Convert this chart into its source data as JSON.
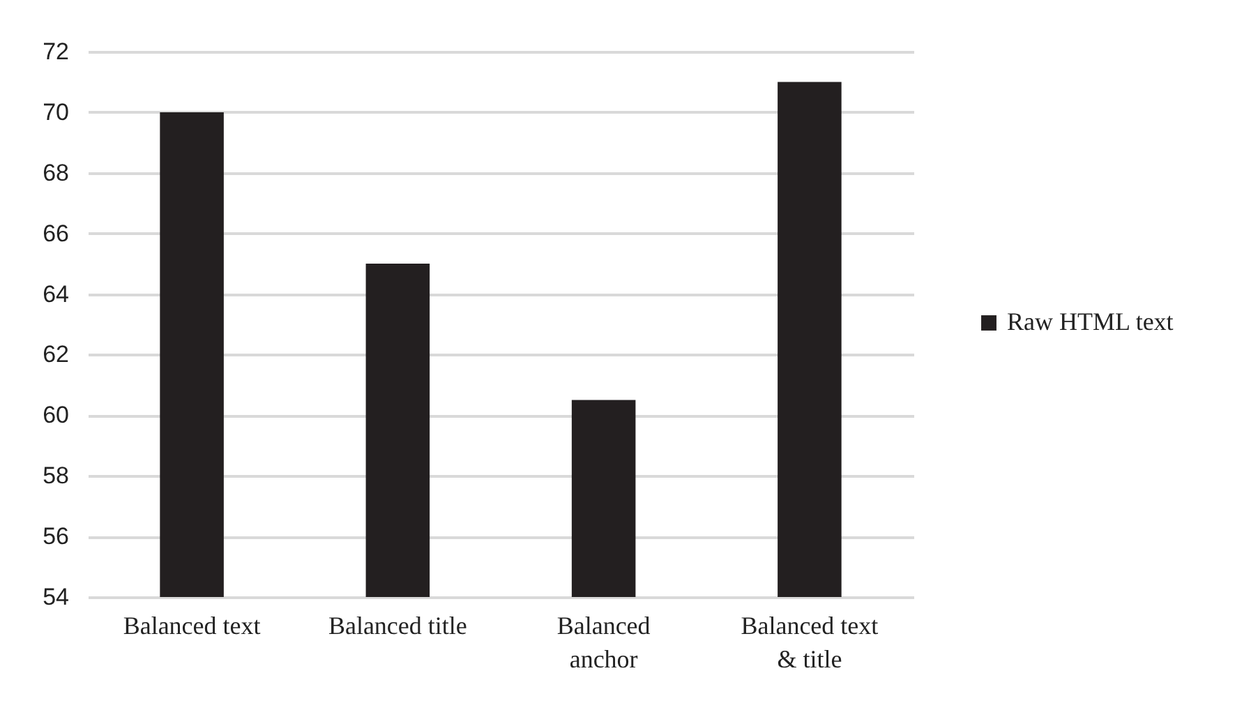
{
  "chart_data": {
    "type": "bar",
    "categories": [
      "Balanced text",
      "Balanced title",
      "Balanced anchor",
      "Balanced text & title"
    ],
    "series": [
      {
        "name": "Raw HTML text",
        "color": "#231f20",
        "values": [
          70,
          65,
          60.5,
          71
        ]
      }
    ],
    "ylim": [
      54,
      72
    ],
    "yticks": [
      54,
      56,
      58,
      60,
      62,
      64,
      66,
      68,
      70,
      72
    ],
    "grid": "y",
    "legend": "right"
  }
}
